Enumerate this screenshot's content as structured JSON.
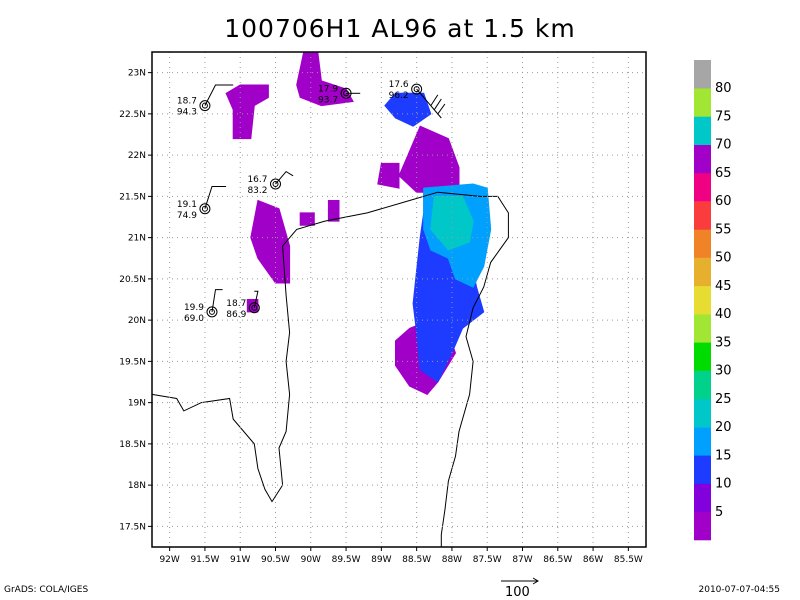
{
  "title": "100706H1 AL96 at 1.5 km",
  "footer": {
    "left": "GrADS: COLA/IGES",
    "right": "2010-07-07-04:55",
    "ref_vector": "100"
  },
  "chart_data": {
    "type": "heatmap",
    "title": "100706H1 AL96 at 1.5 km",
    "xlim": [
      -92.25,
      -85.25
    ],
    "ylim": [
      17.25,
      23.25
    ],
    "x_ticks": [
      {
        "v": -92,
        "label": "92W"
      },
      {
        "v": -91.5,
        "label": "91.5W"
      },
      {
        "v": -91,
        "label": "91W"
      },
      {
        "v": -90.5,
        "label": "90.5W"
      },
      {
        "v": -90,
        "label": "90W"
      },
      {
        "v": -89.5,
        "label": "89.5W"
      },
      {
        "v": -89,
        "label": "89W"
      },
      {
        "v": -88.5,
        "label": "88.5W"
      },
      {
        "v": -88,
        "label": "88W"
      },
      {
        "v": -87.5,
        "label": "87.5W"
      },
      {
        "v": -87,
        "label": "87W"
      },
      {
        "v": -86.5,
        "label": "86.5W"
      },
      {
        "v": -86,
        "label": "86W"
      },
      {
        "v": -85.5,
        "label": "85.5W"
      }
    ],
    "y_ticks": [
      {
        "v": 17.5,
        "label": "17.5N"
      },
      {
        "v": 18,
        "label": "18N"
      },
      {
        "v": 18.5,
        "label": "18.5N"
      },
      {
        "v": 19,
        "label": "19N"
      },
      {
        "v": 19.5,
        "label": "19.5N"
      },
      {
        "v": 20,
        "label": "20N"
      },
      {
        "v": 20.5,
        "label": "20.5N"
      },
      {
        "v": 21,
        "label": "21N"
      },
      {
        "v": 21.5,
        "label": "21.5N"
      },
      {
        "v": 22,
        "label": "22N"
      },
      {
        "v": 22.5,
        "label": "22.5N"
      },
      {
        "v": 23,
        "label": "23N"
      }
    ],
    "grid": true,
    "colorbar": {
      "levels": [
        "5",
        "10",
        "15",
        "20",
        "25",
        "30",
        "35",
        "40",
        "45",
        "50",
        "55",
        "60",
        "65",
        "70",
        "75",
        "80"
      ],
      "colors": [
        "#a000c8",
        "#8200dc",
        "#1e3cff",
        "#00a0ff",
        "#00c8c8",
        "#00d28c",
        "#00dc00",
        "#a0e632",
        "#e6dc32",
        "#e6af2d",
        "#f08228",
        "#fa3c3c",
        "#f00082",
        "#a000c8",
        "#00c8c8",
        "#a0e632",
        "#a6a6a6"
      ]
    },
    "wind_regions": [
      {
        "level": "5-10",
        "color": "#a000c8",
        "polygon": [
          [
            -91.0,
            22.85
          ],
          [
            -90.6,
            22.85
          ],
          [
            -90.6,
            22.7
          ],
          [
            -90.8,
            22.6
          ],
          [
            -90.85,
            22.2
          ],
          [
            -91.1,
            22.2
          ],
          [
            -91.1,
            22.55
          ],
          [
            -91.2,
            22.75
          ]
        ]
      },
      {
        "level": "5-10",
        "color": "#a000c8",
        "polygon": [
          [
            -90.1,
            23.25
          ],
          [
            -89.9,
            23.25
          ],
          [
            -89.85,
            22.9
          ],
          [
            -89.5,
            22.8
          ],
          [
            -89.4,
            22.65
          ],
          [
            -89.85,
            22.6
          ],
          [
            -90.15,
            22.7
          ],
          [
            -90.2,
            22.85
          ]
        ]
      },
      {
        "level": "5-10",
        "color": "#a000c8",
        "polygon": [
          [
            -89.0,
            21.9
          ],
          [
            -88.75,
            21.9
          ],
          [
            -88.75,
            21.6
          ],
          [
            -89.05,
            21.65
          ]
        ]
      },
      {
        "level": "5-10",
        "color": "#a000c8",
        "polygon": [
          [
            -88.45,
            22.35
          ],
          [
            -88.05,
            22.2
          ],
          [
            -87.9,
            21.85
          ],
          [
            -87.9,
            21.55
          ],
          [
            -88.15,
            21.55
          ],
          [
            -88.5,
            21.55
          ],
          [
            -88.75,
            21.75
          ],
          [
            -88.65,
            21.95
          ]
        ]
      },
      {
        "level": "5-10",
        "color": "#a000c8",
        "polygon": [
          [
            -90.75,
            21.45
          ],
          [
            -90.45,
            21.35
          ],
          [
            -90.3,
            20.9
          ],
          [
            -90.3,
            20.45
          ],
          [
            -90.5,
            20.45
          ],
          [
            -90.75,
            20.75
          ],
          [
            -90.85,
            21.0
          ]
        ]
      },
      {
        "level": "5-10",
        "color": "#a000c8",
        "polygon": [
          [
            -90.15,
            21.3
          ],
          [
            -89.95,
            21.3
          ],
          [
            -89.95,
            21.15
          ],
          [
            -90.15,
            21.15
          ]
        ]
      },
      {
        "level": "5-10",
        "color": "#a000c8",
        "polygon": [
          [
            -89.75,
            21.45
          ],
          [
            -89.6,
            21.45
          ],
          [
            -89.6,
            21.2
          ],
          [
            -89.75,
            21.2
          ]
        ]
      },
      {
        "level": "5-10",
        "color": "#a000c8",
        "polygon": [
          [
            -88.6,
            19.9
          ],
          [
            -88.3,
            20.0
          ],
          [
            -88.05,
            19.85
          ],
          [
            -87.95,
            19.6
          ],
          [
            -88.2,
            19.25
          ],
          [
            -88.35,
            19.1
          ],
          [
            -88.6,
            19.2
          ],
          [
            -88.8,
            19.45
          ],
          [
            -88.8,
            19.75
          ]
        ]
      },
      {
        "level": "5-10",
        "color": "#a000c8",
        "polygon": [
          [
            -90.9,
            20.25
          ],
          [
            -90.75,
            20.25
          ],
          [
            -90.75,
            20.1
          ],
          [
            -90.9,
            20.1
          ]
        ]
      },
      {
        "level": "10-15",
        "color": "#1e3cff",
        "polygon": [
          [
            -88.8,
            22.75
          ],
          [
            -88.4,
            22.75
          ],
          [
            -88.3,
            22.5
          ],
          [
            -88.55,
            22.35
          ],
          [
            -88.8,
            22.45
          ],
          [
            -88.95,
            22.6
          ]
        ]
      },
      {
        "level": "10-15",
        "color": "#1e3cff",
        "polygon": [
          [
            -88.4,
            21.55
          ],
          [
            -88.05,
            21.55
          ],
          [
            -87.9,
            21.1
          ],
          [
            -87.75,
            20.8
          ],
          [
            -87.65,
            20.4
          ],
          [
            -87.55,
            20.1
          ],
          [
            -87.85,
            19.9
          ],
          [
            -88.0,
            19.6
          ],
          [
            -88.2,
            19.25
          ],
          [
            -88.45,
            19.4
          ],
          [
            -88.5,
            19.85
          ],
          [
            -88.55,
            20.2
          ],
          [
            -88.5,
            20.6
          ],
          [
            -88.45,
            21.0
          ],
          [
            -88.4,
            21.3
          ]
        ]
      },
      {
        "level": "15-20",
        "color": "#00a0ff",
        "polygon": [
          [
            -88.4,
            21.6
          ],
          [
            -87.7,
            21.65
          ],
          [
            -87.5,
            21.6
          ],
          [
            -87.45,
            21.1
          ],
          [
            -87.55,
            20.65
          ],
          [
            -87.7,
            20.4
          ],
          [
            -87.95,
            20.5
          ],
          [
            -88.05,
            20.75
          ],
          [
            -88.3,
            20.85
          ],
          [
            -88.4,
            21.1
          ]
        ]
      },
      {
        "level": "20-25",
        "color": "#00c8c8",
        "polygon": [
          [
            -88.25,
            21.5
          ],
          [
            -87.85,
            21.5
          ],
          [
            -87.7,
            21.2
          ],
          [
            -87.75,
            20.95
          ],
          [
            -88.05,
            20.85
          ],
          [
            -88.3,
            21.1
          ]
        ]
      }
    ],
    "stations": [
      {
        "lon": -91.5,
        "lat": 22.6,
        "temp": "18.7",
        "rh": "94.3",
        "barb": [
          [
            -91.5,
            22.6
          ],
          [
            -91.35,
            22.85
          ],
          [
            -91.1,
            22.85
          ]
        ],
        "ticks": []
      },
      {
        "lon": -89.5,
        "lat": 22.75,
        "temp": "17.9",
        "rh": "93.7",
        "barb": [
          [
            -89.5,
            22.75
          ],
          [
            -89.3,
            22.75
          ]
        ],
        "ticks": []
      },
      {
        "lon": -88.5,
        "lat": 22.8,
        "temp": "17.6",
        "rh": "96.2",
        "barb": [
          [
            -88.5,
            22.8
          ],
          [
            -88.15,
            22.45
          ]
        ],
        "ticks": [
          [
            [
              -88.2,
              22.5
            ],
            [
              -88.1,
              22.62
            ]
          ],
          [
            [
              -88.25,
              22.55
            ],
            [
              -88.15,
              22.68
            ]
          ],
          [
            [
              -88.3,
              22.6
            ],
            [
              -88.2,
              22.73
            ]
          ]
        ]
      },
      {
        "lon": -90.5,
        "lat": 21.65,
        "temp": "16.7",
        "rh": "83.2",
        "barb": [
          [
            -90.5,
            21.65
          ],
          [
            -90.35,
            21.8
          ],
          [
            -90.25,
            21.75
          ]
        ],
        "ticks": []
      },
      {
        "lon": -91.5,
        "lat": 21.35,
        "temp": "19.1",
        "rh": "74.9",
        "barb": [
          [
            -91.5,
            21.35
          ],
          [
            -91.4,
            21.62
          ],
          [
            -91.2,
            21.62
          ]
        ],
        "ticks": []
      },
      {
        "lon": -91.4,
        "lat": 20.1,
        "temp": "19.9",
        "rh": "69.0",
        "barb": [
          [
            -91.4,
            20.1
          ],
          [
            -91.35,
            20.37
          ],
          [
            -91.25,
            20.37
          ]
        ],
        "ticks": []
      },
      {
        "lon": -90.8,
        "lat": 20.15,
        "temp": "18.7",
        "rh": "86.9",
        "barb": [
          [
            -90.8,
            20.15
          ],
          [
            -90.75,
            20.35
          ],
          [
            -90.8,
            20.35
          ]
        ],
        "ticks": []
      }
    ],
    "coastlines": [
      [
        [
          -92.25,
          19.1
        ],
        [
          -91.9,
          19.05
        ],
        [
          -91.8,
          18.9
        ],
        [
          -91.55,
          19.0
        ],
        [
          -91.15,
          19.05
        ],
        [
          -91.1,
          18.8
        ],
        [
          -90.8,
          18.5
        ],
        [
          -90.75,
          18.2
        ],
        [
          -90.65,
          17.95
        ],
        [
          -90.55,
          17.8
        ],
        [
          -90.4,
          18.0
        ],
        [
          -90.45,
          18.45
        ],
        [
          -90.35,
          18.65
        ],
        [
          -90.3,
          19.1
        ],
        [
          -90.35,
          19.5
        ],
        [
          -90.3,
          19.85
        ],
        [
          -90.35,
          20.3
        ],
        [
          -90.4,
          20.9
        ],
        [
          -90.2,
          21.1
        ],
        [
          -89.8,
          21.2
        ],
        [
          -89.2,
          21.3
        ],
        [
          -88.6,
          21.45
        ],
        [
          -88.2,
          21.55
        ],
        [
          -87.6,
          21.5
        ],
        [
          -87.35,
          21.5
        ],
        [
          -87.2,
          21.3
        ],
        [
          -87.2,
          21.0
        ],
        [
          -87.45,
          20.7
        ],
        [
          -87.55,
          20.4
        ],
        [
          -87.7,
          20.15
        ],
        [
          -87.8,
          19.8
        ],
        [
          -87.7,
          19.5
        ],
        [
          -87.75,
          19.1
        ],
        [
          -87.9,
          18.65
        ],
        [
          -87.95,
          18.35
        ],
        [
          -88.05,
          18.05
        ],
        [
          -88.1,
          17.7
        ],
        [
          -88.15,
          17.4
        ],
        [
          -88.15,
          17.25
        ]
      ]
    ]
  }
}
